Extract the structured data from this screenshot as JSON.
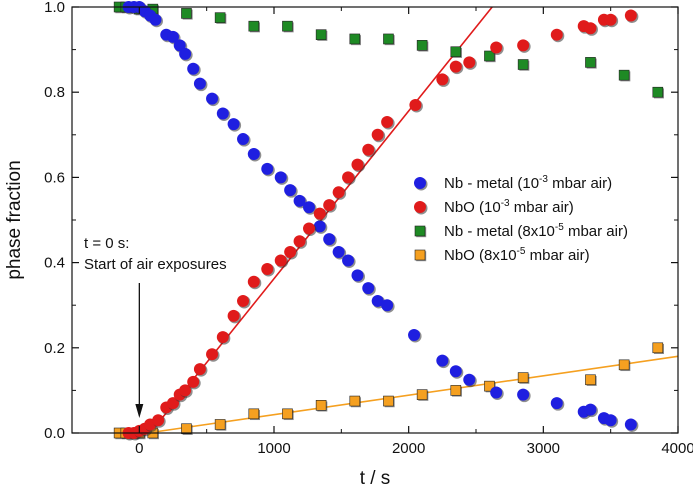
{
  "chart_data": {
    "type": "scatter",
    "xlabel": "t / s",
    "ylabel": "phase fraction",
    "xlim": [
      -500,
      4000
    ],
    "ylim": [
      0,
      1.0
    ],
    "x_ticks": [
      0,
      1000,
      2000,
      3000,
      4000
    ],
    "y_ticks": [
      0.0,
      0.2,
      0.4,
      0.6,
      0.8,
      1.0
    ],
    "x_tick_labels": [
      "0",
      "1000",
      "2000",
      "3000",
      "4000"
    ],
    "y_tick_labels": [
      "0.0",
      "0.2",
      "0.4",
      "0.6",
      "0.8",
      "1.0"
    ],
    "grid": false,
    "legend_position": "right",
    "annotation": {
      "line1": "t = 0 s:",
      "line2": "Start of air exposures",
      "arrow_x": 0
    },
    "series": [
      {
        "legend_main": "Nb - metal (10",
        "legend_sup": "-3",
        "legend_tail": " mbar air)",
        "marker": "circle",
        "color": "#1f1fe0",
        "x": [
          -80,
          -40,
          0,
          40,
          80,
          120,
          200,
          250,
          300,
          340,
          400,
          450,
          540,
          620,
          700,
          770,
          850,
          950,
          1050,
          1120,
          1190,
          1260,
          1340,
          1410,
          1480,
          1550,
          1620,
          1700,
          1770,
          1840,
          2040,
          2250,
          2350,
          2450,
          2650,
          2850,
          3100,
          3300,
          3350,
          3450,
          3500,
          3650
        ],
        "y": [
          1.0,
          1.0,
          1.0,
          0.99,
          0.98,
          0.97,
          0.935,
          0.93,
          0.91,
          0.89,
          0.855,
          0.82,
          0.785,
          0.75,
          0.725,
          0.69,
          0.655,
          0.62,
          0.6,
          0.57,
          0.545,
          0.53,
          0.485,
          0.455,
          0.425,
          0.405,
          0.37,
          0.34,
          0.31,
          0.3,
          0.23,
          0.17,
          0.145,
          0.125,
          0.095,
          0.09,
          0.07,
          0.05,
          0.055,
          0.035,
          0.03,
          0.02
        ]
      },
      {
        "legend_main": "NbO (10",
        "legend_sup": "-3",
        "legend_tail": " mbar air)",
        "marker": "circle",
        "color": "#e01b1b",
        "x": [
          -80,
          -40,
          0,
          40,
          80,
          140,
          200,
          250,
          300,
          340,
          400,
          450,
          540,
          620,
          700,
          770,
          850,
          950,
          1050,
          1120,
          1190,
          1260,
          1340,
          1410,
          1480,
          1550,
          1620,
          1700,
          1770,
          1840,
          2050,
          2250,
          2350,
          2450,
          2650,
          2850,
          3100,
          3300,
          3350,
          3450,
          3500,
          3650
        ],
        "y": [
          0.0,
          0.0,
          0.005,
          0.01,
          0.02,
          0.03,
          0.06,
          0.07,
          0.09,
          0.1,
          0.12,
          0.15,
          0.185,
          0.225,
          0.275,
          0.31,
          0.355,
          0.385,
          0.405,
          0.425,
          0.45,
          0.48,
          0.515,
          0.535,
          0.565,
          0.6,
          0.63,
          0.665,
          0.7,
          0.73,
          0.77,
          0.83,
          0.86,
          0.87,
          0.905,
          0.91,
          0.935,
          0.955,
          0.95,
          0.97,
          0.97,
          0.98
        ]
      },
      {
        "legend_main": "Nb - metal (8x10",
        "legend_sup": "-5",
        "legend_tail": " mbar air)",
        "marker": "square",
        "color": "#1e8a24",
        "x": [
          -150,
          -100,
          -50,
          0,
          100,
          350,
          600,
          850,
          1100,
          1350,
          1600,
          1850,
          2100,
          2350,
          2600,
          2850,
          3350,
          3600,
          3850
        ],
        "y": [
          1.0,
          1.0,
          1.0,
          0.995,
          0.995,
          0.985,
          0.975,
          0.955,
          0.955,
          0.935,
          0.925,
          0.925,
          0.91,
          0.895,
          0.885,
          0.865,
          0.87,
          0.84,
          0.8
        ]
      },
      {
        "legend_main": "NbO (8x10",
        "legend_sup": "-5",
        "legend_tail": " mbar air)",
        "marker": "square",
        "color": "#f5a020",
        "x": [
          -150,
          -100,
          -50,
          0,
          100,
          350,
          600,
          850,
          1100,
          1350,
          1600,
          1850,
          2100,
          2350,
          2600,
          2850,
          3350,
          3600,
          3850
        ],
        "y": [
          0.0,
          0.0,
          0.0,
          0.0,
          0.0,
          0.01,
          0.02,
          0.045,
          0.045,
          0.065,
          0.075,
          0.075,
          0.09,
          0.1,
          0.11,
          0.13,
          0.125,
          0.16,
          0.2
        ]
      }
    ],
    "fit_lines": [
      {
        "color": "#e01b1b",
        "x": [
          80,
          2620
        ],
        "y": [
          0.0,
          1.0
        ]
      },
      {
        "color": "#f5a020",
        "x": [
          60,
          4000
        ],
        "y": [
          0.0,
          0.18
        ]
      }
    ]
  }
}
